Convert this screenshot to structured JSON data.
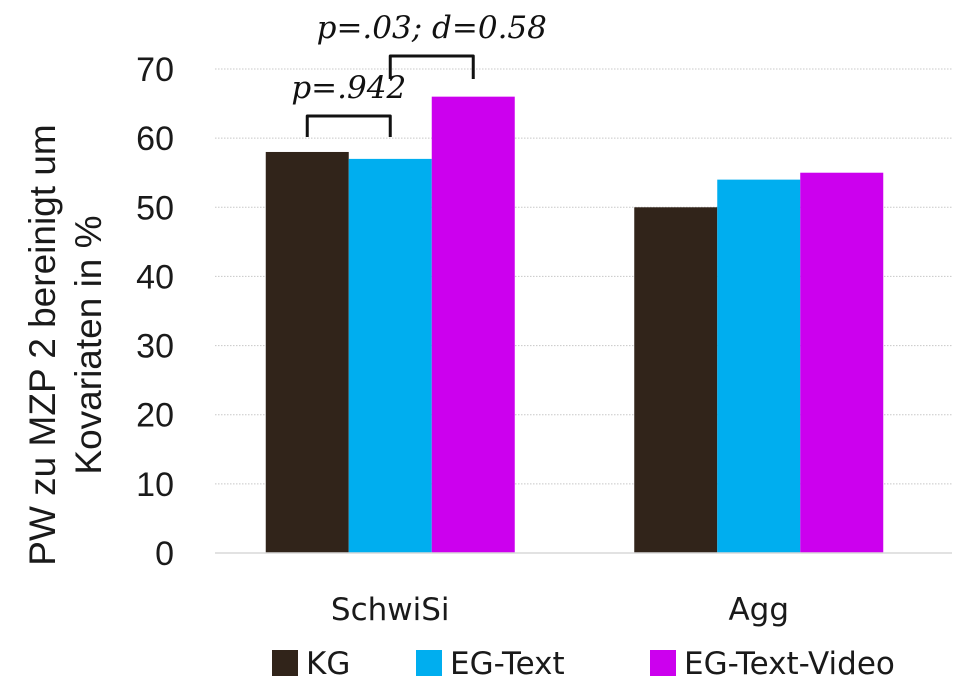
{
  "chart_data": {
    "type": "bar",
    "title": "",
    "categories": [
      "SchwiSi",
      "Agg"
    ],
    "series": [
      {
        "name": "KG",
        "values": [
          58,
          50
        ]
      },
      {
        "name": "EG-Text",
        "values": [
          57,
          54
        ]
      },
      {
        "name": "EG-Text-Video",
        "values": [
          66,
          55
        ]
      }
    ],
    "ylabel_line1": "PW zu MZP 2 bereinigt um",
    "ylabel_line2": "Kovariaten in %",
    "ylim": [
      0,
      70
    ],
    "yticks": [
      "0",
      "10",
      "20",
      "30",
      "40",
      "50",
      "60",
      "70"
    ],
    "grid": true,
    "legend_position": "bottom",
    "annotations": [
      {
        "text": "p=.942",
        "from": "KG",
        "to": "EG-Text",
        "category": "SchwiSi"
      },
      {
        "text": "p=.03; d=0.58",
        "from": "EG-Text",
        "to": "EG-Text-Video",
        "category": "SchwiSi"
      }
    ],
    "colors": {
      "KG": "#31241a",
      "EG-Text": "#00aeef",
      "EG-Text-Video": "#cc00ee"
    }
  }
}
